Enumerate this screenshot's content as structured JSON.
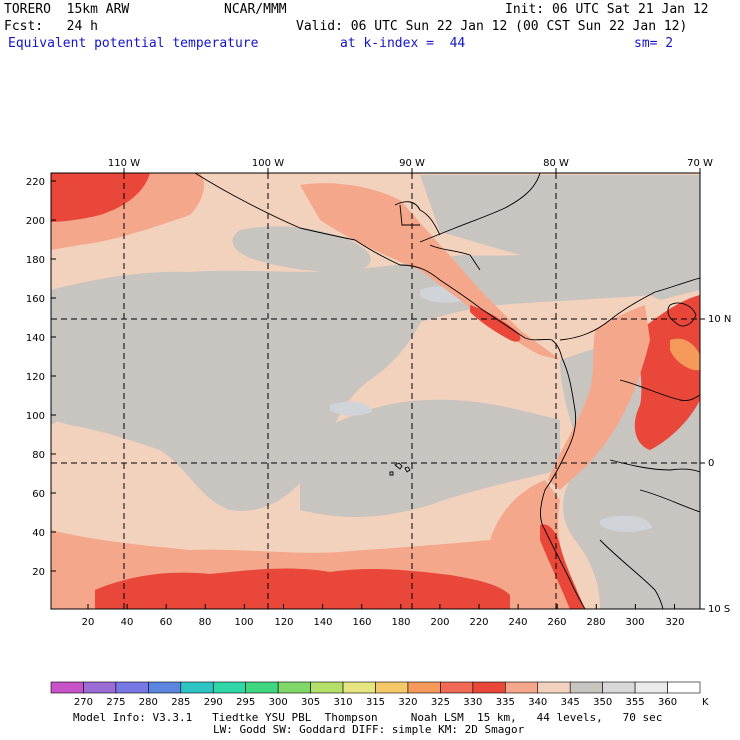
{
  "header": {
    "model": "TORERO  15km ARW",
    "center": "NCAR/MMM",
    "init": "Init: 06 UTC Sat 21 Jan 12",
    "fcst": "Fcst:   24 h",
    "valid": "Valid: 06 UTC Sun 22 Jan 12 (00 CST Sun 22 Jan 12)",
    "field": "Equivalent potential temperature",
    "level": "at k-index =  44",
    "smooth": "sm= 2"
  },
  "map": {
    "top_lon_labels": [
      "110 W",
      "100 W",
      "90 W",
      "80 W",
      "70 W"
    ],
    "right_lat_labels": [
      "10 N",
      "0",
      "10 S"
    ],
    "left_grid_labels": [
      "220",
      "200",
      "180",
      "160",
      "140",
      "120",
      "100",
      "80",
      "60",
      "40",
      "20"
    ],
    "bottom_grid_labels": [
      "20",
      "40",
      "60",
      "80",
      "100",
      "120",
      "140",
      "160",
      "180",
      "200",
      "220",
      "240",
      "260",
      "280",
      "300",
      "320"
    ],
    "colors": {
      "land_grey": "#c8c4c0",
      "tan": "#f2d2bd",
      "salmon": "#f5a78c",
      "coral": "#f06a55",
      "red": "#e8473a",
      "orange": "#f59a5a",
      "cloud": "#d0d4d8"
    }
  },
  "colorbar": {
    "labels": [
      "270",
      "275",
      "280",
      "285",
      "290",
      "295",
      "300",
      "305",
      "310",
      "315",
      "320",
      "325",
      "330",
      "335",
      "340",
      "345",
      "350",
      "355",
      "360"
    ],
    "unit": "K",
    "colors": [
      "#c852c8",
      "#9b6bd6",
      "#7777e6",
      "#5a86e0",
      "#2ec4c4",
      "#2ed6a8",
      "#40d680",
      "#80d86a",
      "#b4e06a",
      "#e6e680",
      "#f5c86a",
      "#f59a5a",
      "#f06a55",
      "#e8473a",
      "#f5a78c",
      "#f2d2bd",
      "#c8c4c0",
      "#d8d8d8",
      "#ebebeb",
      "#ffffff"
    ]
  },
  "footer": {
    "line1": "Model Info: V3.3.1   Tiedtke YSU PBL  Thompson     Noah LSM  15 km,   44 levels,   70 sec",
    "line2": "LW: Godd SW: Goddard DIFF: simple KM: 2D Smagor"
  }
}
